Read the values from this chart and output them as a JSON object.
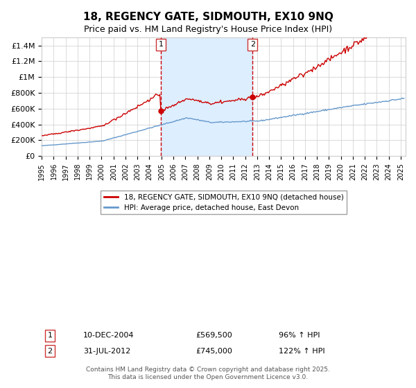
{
  "title": "18, REGENCY GATE, SIDMOUTH, EX10 9NQ",
  "subtitle": "Price paid vs. HM Land Registry's House Price Index (HPI)",
  "legend_line1": "18, REGENCY GATE, SIDMOUTH, EX10 9NQ (detached house)",
  "legend_line2": "HPI: Average price, detached house, East Devon",
  "sale1_date": "10-DEC-2004",
  "sale1_price": 569500,
  "sale1_label": "96% ↑ HPI",
  "sale2_date": "31-JUL-2012",
  "sale2_price": 745000,
  "sale2_label": "122% ↑ HPI",
  "footer": "Contains HM Land Registry data © Crown copyright and database right 2025.\nThis data is licensed under the Open Government Licence v3.0.",
  "red_color": "#cc0000",
  "blue_color": "#6699cc",
  "shade_color": "#ddeeff",
  "grid_color": "#cccccc",
  "bg_color": "#ffffff",
  "ylim": [
    0,
    1500000
  ],
  "yticks": [
    0,
    200000,
    400000,
    600000,
    800000,
    1000000,
    1200000,
    1400000
  ],
  "ytick_labels": [
    "£0",
    "£200K",
    "£400K",
    "£600K",
    "£800K",
    "£1M",
    "£1.2M",
    "£1.4M"
  ],
  "year_start": 1995,
  "year_end": 2025
}
